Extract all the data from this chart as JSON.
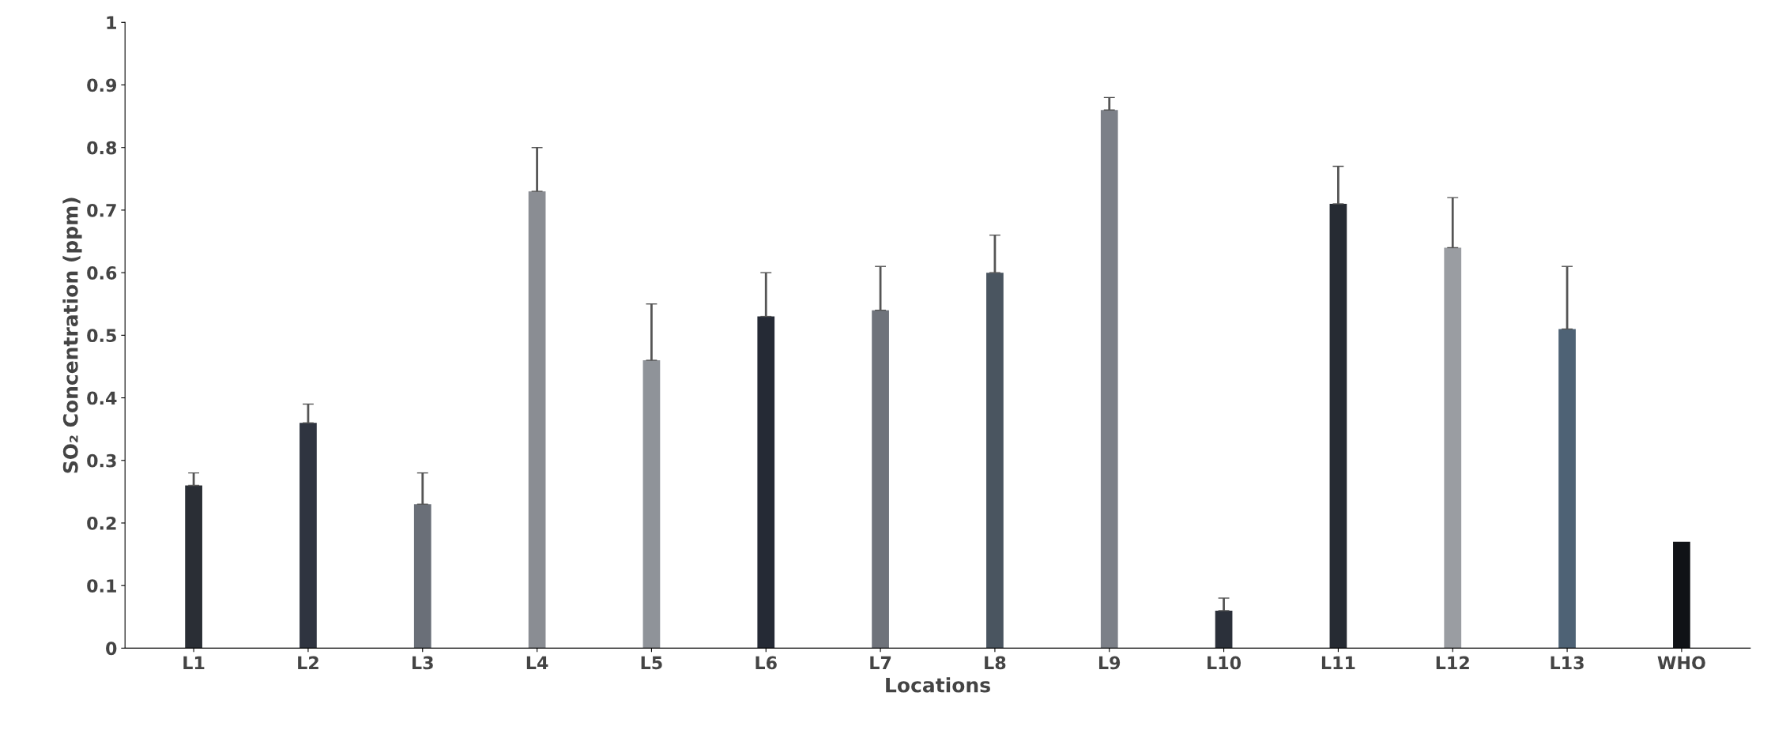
{
  "chart_data": {
    "type": "bar",
    "xlabel": "Locations",
    "ylabel": "SO₂ Concentration (ppm)",
    "categories": [
      "L1",
      "L2",
      "L3",
      "L4",
      "L5",
      "L6",
      "L7",
      "L8",
      "L9",
      "L10",
      "L11",
      "L12",
      "L13",
      "WHO"
    ],
    "values": [
      0.26,
      0.36,
      0.23,
      0.73,
      0.46,
      0.53,
      0.54,
      0.6,
      0.86,
      0.06,
      0.71,
      0.64,
      0.51,
      0.17
    ],
    "errors": [
      [
        0.26,
        0.28
      ],
      [
        0.36,
        0.39
      ],
      [
        0.23,
        0.28
      ],
      [
        0.73,
        0.8
      ],
      [
        0.46,
        0.55
      ],
      [
        0.53,
        0.6
      ],
      [
        0.54,
        0.61
      ],
      [
        0.6,
        0.66
      ],
      [
        0.86,
        0.88
      ],
      [
        0.06,
        0.08
      ],
      [
        0.71,
        0.77
      ],
      [
        0.64,
        0.72
      ],
      [
        0.51,
        0.61
      ],
      null
    ],
    "colors": [
      "#2a2e35",
      "#2f3440",
      "#6a6f78",
      "#8a8d93",
      "#8f9399",
      "#252a35",
      "#6f737b",
      "#4a5560",
      "#7c8088",
      "#2b303a",
      "#262b33",
      "#9a9da2",
      "#4e6275",
      "#101216"
    ],
    "ylim": [
      0,
      1
    ],
    "yticks": [
      0,
      0.1,
      0.2,
      0.3,
      0.4,
      0.5,
      0.6,
      0.7,
      0.8,
      0.9,
      1
    ],
    "grid": false
  }
}
